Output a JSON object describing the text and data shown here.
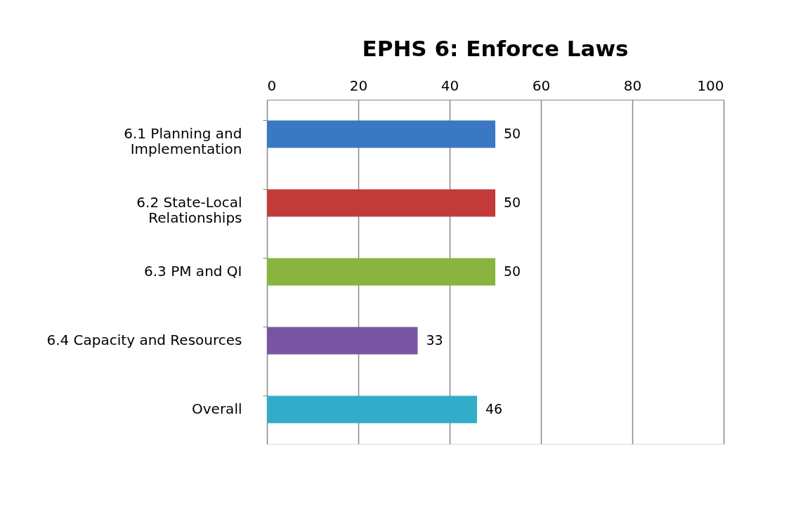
{
  "chart_data": {
    "type": "bar",
    "orientation": "horizontal",
    "title": "EPHS 6: Enforce Laws",
    "categories": [
      "6.1 Planning and Implementation",
      "6.2 State-Local Relationships",
      "6.3 PM and QI",
      "6.4 Capacity and Resources",
      "Overall"
    ],
    "values": [
      50,
      50,
      50,
      33,
      46
    ],
    "colors": [
      "#3a78c4",
      "#c23b3a",
      "#8ab440",
      "#7755a2",
      "#33acc9"
    ],
    "xlim": [
      0,
      100
    ],
    "xticks": [
      0,
      20,
      40,
      60,
      80,
      100
    ],
    "grid": "x",
    "data_labels": true
  }
}
